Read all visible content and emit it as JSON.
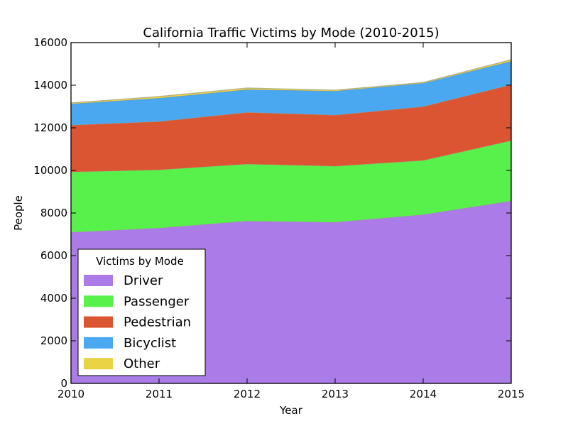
{
  "chart_data": {
    "type": "area",
    "stacked": true,
    "title": "California Traffic Victims by Mode (2010-2015)",
    "xlabel": "Year",
    "ylabel": "People",
    "x": [
      2010,
      2011,
      2012,
      2013,
      2014,
      2015
    ],
    "xlim": [
      2010,
      2015
    ],
    "ylim": [
      0,
      16000
    ],
    "xticks": [
      "2010",
      "2011",
      "2012",
      "2013",
      "2014",
      "2015"
    ],
    "yticks": [
      "0",
      "2000",
      "4000",
      "6000",
      "8000",
      "10000",
      "12000",
      "14000",
      "16000"
    ],
    "grid": false,
    "legend": {
      "title": "Victims by Mode",
      "placement": "lower-left"
    },
    "series": [
      {
        "name": "Driver",
        "color": "#ab7ce8",
        "values": [
          7100,
          7300,
          7630,
          7570,
          7930,
          8570
        ]
      },
      {
        "name": "Passenger",
        "color": "#58f14c",
        "values": [
          2830,
          2730,
          2670,
          2630,
          2540,
          2830
        ]
      },
      {
        "name": "Pedestrian",
        "color": "#dc5533",
        "values": [
          2200,
          2270,
          2430,
          2400,
          2530,
          2630
        ]
      },
      {
        "name": "Bicyclist",
        "color": "#49a8f0",
        "values": [
          1000,
          1100,
          1070,
          1130,
          1100,
          1100
        ]
      },
      {
        "name": "Other",
        "color": "#e8d444",
        "values": [
          40,
          70,
          70,
          40,
          30,
          70
        ]
      }
    ]
  }
}
